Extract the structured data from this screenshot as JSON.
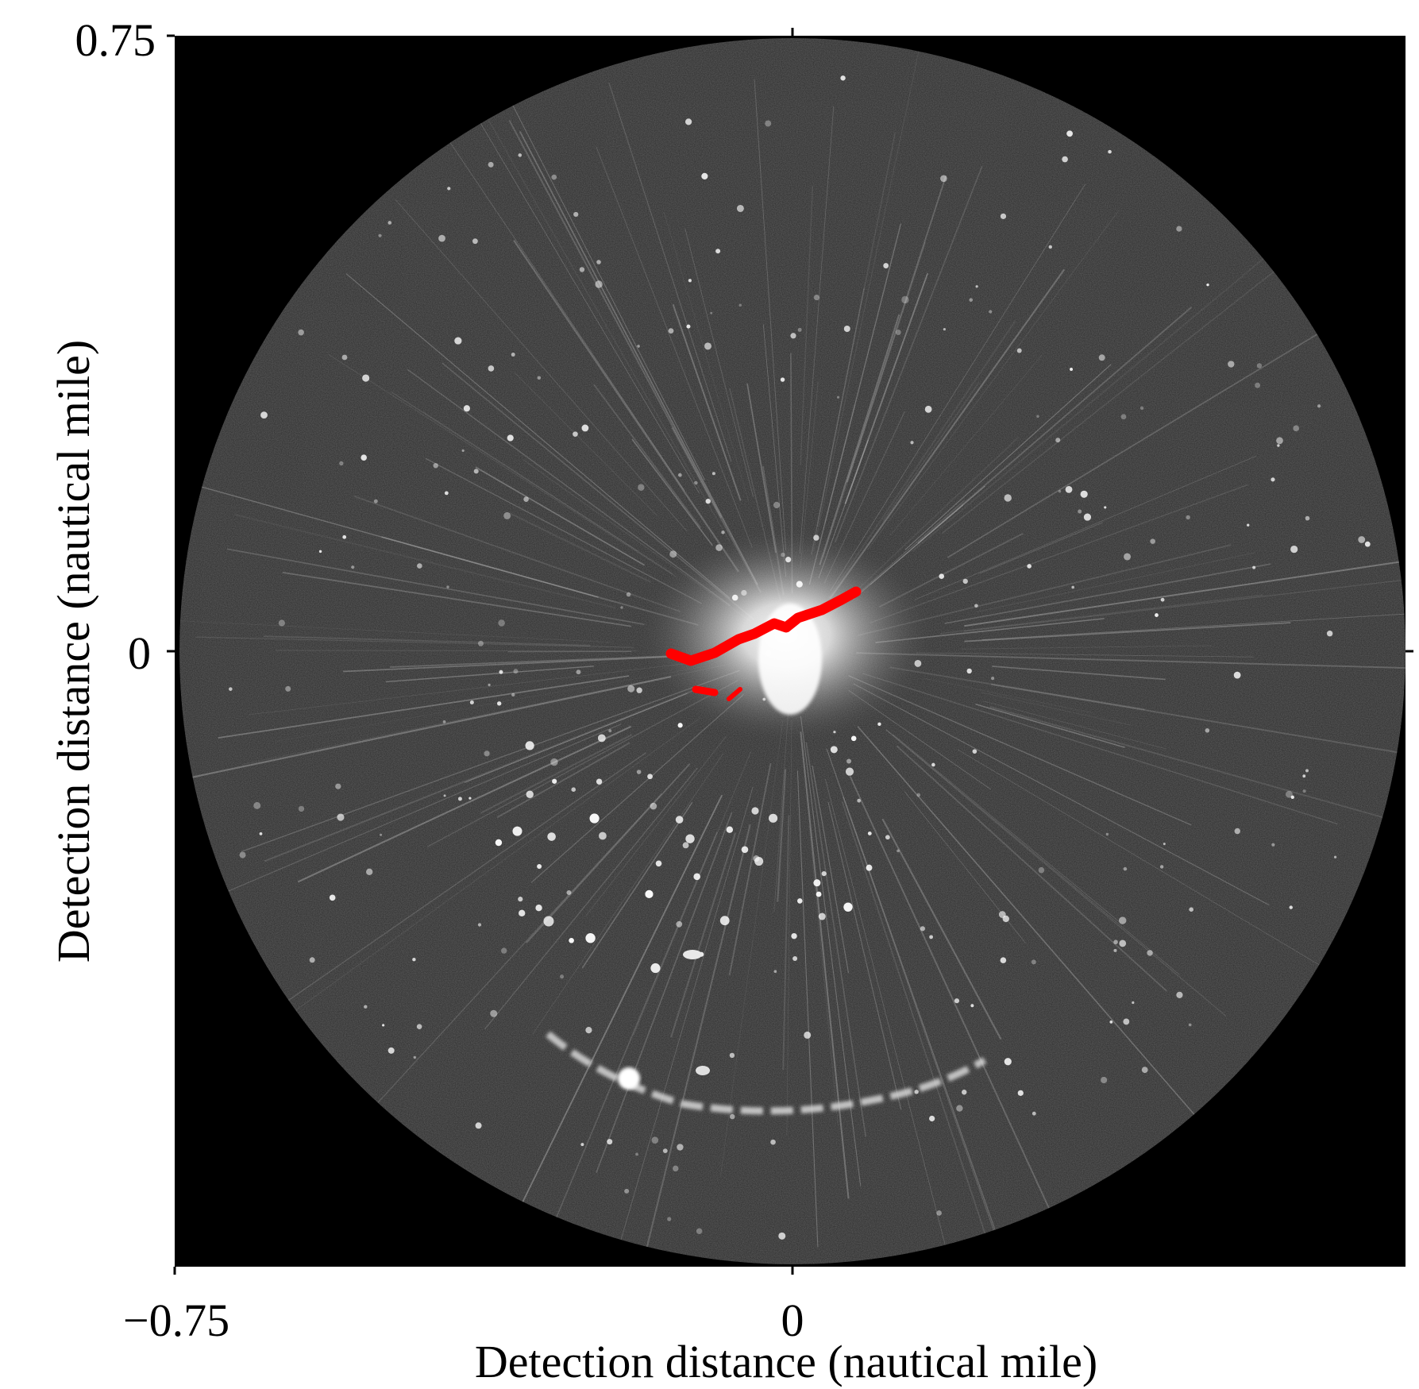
{
  "figure": {
    "kind": "radar echo image",
    "background_color": "#000000",
    "scope_color": "#2b2b2b",
    "highlight_color": "#ff0000"
  },
  "axes": {
    "x_label": "Detection distance (nautical mile)",
    "y_label": "Detection distance (nautical mile)",
    "x_ticks": [
      "−0.75",
      "0"
    ],
    "y_ticks": [
      "0.75",
      "0"
    ],
    "x_range": [
      -0.75,
      0.75
    ],
    "y_range": [
      -0.75,
      0.75
    ]
  }
}
